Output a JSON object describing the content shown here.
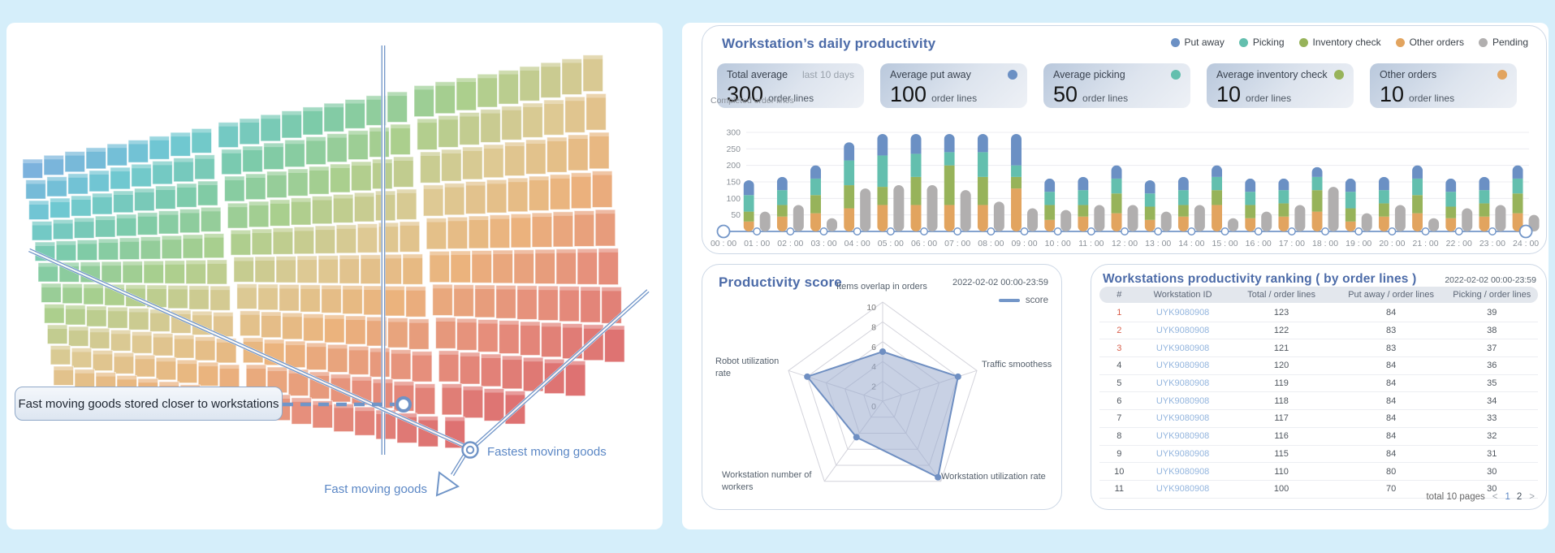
{
  "scene": {
    "tooltip": "Fast moving goods stored closer to workstations",
    "fastest_label": "Fastest moving goods",
    "fast_label": "Fast moving goods",
    "line_color": "#7095c8",
    "palette": [
      "#6aa7d8",
      "#5bc0cc",
      "#6cc49b",
      "#9fc87d",
      "#d9c285",
      "#e8a96b",
      "#e2806a",
      "#d95f5f"
    ]
  },
  "productivity_panel": {
    "title": "Workstation’s daily productivity",
    "legend": [
      {
        "label": "Put away",
        "color": "#6b90c4"
      },
      {
        "label": "Picking",
        "color": "#63bfae"
      },
      {
        "label": "Inventory check",
        "color": "#97b35a"
      },
      {
        "label": "Other orders",
        "color": "#e2a45f"
      },
      {
        "label": "Pending",
        "color": "#b1afaf"
      }
    ],
    "cards": [
      {
        "label": "Total average",
        "sub": "last 10 days",
        "value": "300",
        "unit": "order lines"
      },
      {
        "label": "Average put away",
        "dot_color": "#6b90c4",
        "value": "100",
        "unit": "order lines"
      },
      {
        "label": "Average picking",
        "dot_color": "#63bfae",
        "value": "50",
        "unit": "order lines"
      },
      {
        "label": "Average inventory check",
        "dot_color": "#97b35a",
        "value": "10",
        "unit": "order lines"
      },
      {
        "label": "Other orders",
        "dot_color": "#e2a45f",
        "value": "10",
        "unit": "order lines"
      }
    ],
    "chart_data": {
      "type": "stacked-bar",
      "ylabel": "Completed order lines",
      "yticks": [
        50,
        100,
        150,
        200,
        250,
        300
      ],
      "ylim": [
        0,
        300
      ],
      "x_labels": [
        "00 : 00",
        "01 : 00",
        "02 : 00",
        "03 : 00",
        "04 : 00",
        "05 : 00",
        "06 : 00",
        "07 : 00",
        "08 : 00",
        "09 : 00",
        "10 : 00",
        "11 : 00",
        "12 : 00",
        "13 : 00",
        "14 : 00",
        "15 : 00",
        "16 : 00",
        "17 : 00",
        "18 : 00",
        "19 : 00",
        "20 : 00",
        "21 : 00",
        "22 : 00",
        "23 : 00",
        "24 : 00"
      ],
      "series": [
        {
          "name": "Other orders",
          "color": "#e2a45f",
          "values": [
            30,
            45,
            55,
            70,
            80,
            80,
            80,
            80,
            130,
            35,
            45,
            55,
            35,
            45,
            80,
            40,
            45,
            60,
            30,
            45,
            55,
            40,
            45,
            55
          ]
        },
        {
          "name": "Inventory check",
          "color": "#97b35a",
          "values": [
            30,
            35,
            55,
            70,
            55,
            85,
            120,
            85,
            35,
            45,
            35,
            60,
            40,
            35,
            45,
            40,
            40,
            65,
            40,
            40,
            55,
            35,
            40,
            60
          ]
        },
        {
          "name": "Picking",
          "color": "#63bfae",
          "values": [
            50,
            45,
            50,
            75,
            95,
            70,
            40,
            75,
            35,
            40,
            45,
            45,
            40,
            45,
            40,
            40,
            40,
            40,
            50,
            40,
            50,
            45,
            40,
            45
          ]
        },
        {
          "name": "Put away",
          "color": "#6b90c4",
          "values": [
            45,
            40,
            40,
            55,
            65,
            60,
            55,
            55,
            95,
            40,
            40,
            40,
            40,
            40,
            35,
            40,
            35,
            30,
            40,
            40,
            40,
            40,
            40,
            40
          ]
        }
      ],
      "pending": {
        "name": "Pending",
        "color": "#b1afaf",
        "values": [
          60,
          80,
          40,
          130,
          140,
          140,
          125,
          90,
          70,
          65,
          80,
          80,
          60,
          80,
          40,
          60,
          80,
          135,
          55,
          80,
          40,
          70,
          80,
          50
        ]
      }
    }
  },
  "score_panel": {
    "title": "Productivity score",
    "date": "2022-02-02 00:00-23:59",
    "legend_label": "score",
    "chart_data": {
      "type": "radar",
      "max": 10,
      "tick_values": [
        0,
        2,
        4,
        6,
        8,
        10
      ],
      "axes": [
        "Items overlap in orders",
        "Traffic smoothess",
        "Workstation utilization rate",
        "Workstation number of workers",
        "Robot utilization rate"
      ],
      "series": [
        {
          "name": "score",
          "color": "#6f8fc2",
          "fill": "rgba(154,171,205,0.55)",
          "values": [
            5,
            8,
            9.5,
            4.5,
            8
          ]
        }
      ]
    }
  },
  "ranking_panel": {
    "title": "Workstations productivity ranking ( by order lines )",
    "date": "2022-02-02 00:00-23:59",
    "columns": [
      "#",
      "Workstation ID",
      "Total / order lines",
      "Put away / order lines",
      "Picking / order lines"
    ],
    "rows": [
      {
        "rank": "1",
        "id": "UYK9080908",
        "total": "123",
        "put_away": "84",
        "picking": "39"
      },
      {
        "rank": "2",
        "id": "UYK9080908",
        "total": "122",
        "put_away": "83",
        "picking": "38"
      },
      {
        "rank": "3",
        "id": "UYK9080908",
        "total": "121",
        "put_away": "83",
        "picking": "37"
      },
      {
        "rank": "4",
        "id": "UYK9080908",
        "total": "120",
        "put_away": "84",
        "picking": "36"
      },
      {
        "rank": "5",
        "id": "UYK9080908",
        "total": "119",
        "put_away": "84",
        "picking": "35"
      },
      {
        "rank": "6",
        "id": "UYK9080908",
        "total": "118",
        "put_away": "84",
        "picking": "34"
      },
      {
        "rank": "7",
        "id": "UYK9080908",
        "total": "117",
        "put_away": "84",
        "picking": "33"
      },
      {
        "rank": "8",
        "id": "UYK9080908",
        "total": "116",
        "put_away": "84",
        "picking": "32"
      },
      {
        "rank": "9",
        "id": "UYK9080908",
        "total": "115",
        "put_away": "84",
        "picking": "31"
      },
      {
        "rank": "10",
        "id": "UYK9080908",
        "total": "110",
        "put_away": "80",
        "picking": "30"
      },
      {
        "rank": "11",
        "id": "UYK9080908",
        "total": "100",
        "put_away": "70",
        "picking": "30"
      }
    ],
    "footer": {
      "total_label": "total 10 pages",
      "prev": "<",
      "pages": [
        "1",
        "2"
      ],
      "current": "1",
      "next": ">"
    }
  }
}
